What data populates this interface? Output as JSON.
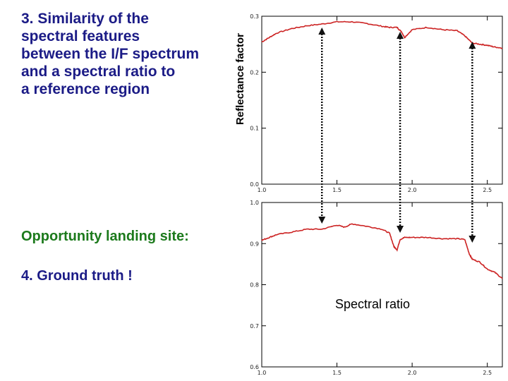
{
  "text": {
    "title": "3. Similarity of the\nspectral features\nbetween the I/F spectrum\nand a spectral ratio to\na reference region",
    "landing": "Opportunity landing site:",
    "truth": "4. Ground truth !"
  },
  "colors": {
    "title": "#1b1b86",
    "landing": "#1c7a1c",
    "series": "#cc2222",
    "arrows": "#111111"
  },
  "chart_data": [
    {
      "type": "line",
      "ylabel": "Reflectance factor",
      "xlim": [
        1.0,
        2.6
      ],
      "ylim": [
        0.0,
        0.3
      ],
      "xticks": [
        "1.0",
        "1.5",
        "2.0",
        "2.5"
      ],
      "yticks": [
        "0.0",
        "0.1",
        "0.2",
        "0.3"
      ],
      "series": [
        {
          "x": [
            1.0,
            1.05,
            1.1,
            1.2,
            1.3,
            1.4,
            1.5,
            1.6,
            1.7,
            1.8,
            1.85,
            1.9,
            1.93,
            1.95,
            2.0,
            2.1,
            2.2,
            2.3,
            2.35,
            2.4,
            2.45,
            2.5,
            2.55,
            2.6
          ],
          "y": [
            0.254,
            0.262,
            0.27,
            0.278,
            0.283,
            0.286,
            0.29,
            0.29,
            0.287,
            0.282,
            0.28,
            0.28,
            0.272,
            0.262,
            0.276,
            0.28,
            0.276,
            0.274,
            0.265,
            0.252,
            0.25,
            0.248,
            0.245,
            0.243
          ]
        }
      ]
    },
    {
      "type": "line",
      "xlim": [
        1.0,
        2.6
      ],
      "ylim": [
        0.6,
        1.0
      ],
      "xticks": [
        "1.0",
        "1.5",
        "2.0",
        "2.5"
      ],
      "yticks": [
        "0.6",
        "0.7",
        "0.8",
        "0.9",
        "1.0"
      ],
      "annotation": "Spectral ratio",
      "series": [
        {
          "x": [
            1.0,
            1.05,
            1.1,
            1.2,
            1.3,
            1.4,
            1.5,
            1.55,
            1.6,
            1.7,
            1.8,
            1.85,
            1.88,
            1.9,
            1.92,
            1.95,
            2.0,
            2.1,
            2.2,
            2.3,
            2.35,
            2.38,
            2.4,
            2.45,
            2.5,
            2.55,
            2.6
          ],
          "y": [
            0.908,
            0.915,
            0.922,
            0.928,
            0.935,
            0.935,
            0.945,
            0.94,
            0.948,
            0.942,
            0.935,
            0.925,
            0.892,
            0.885,
            0.91,
            0.915,
            0.915,
            0.915,
            0.912,
            0.912,
            0.91,
            0.875,
            0.862,
            0.855,
            0.838,
            0.83,
            0.815
          ]
        }
      ]
    }
  ]
}
